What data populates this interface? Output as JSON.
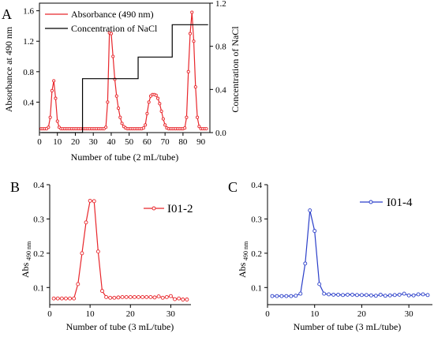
{
  "chart_data": [
    {
      "panel": "A",
      "type": "line",
      "xlabel": "Number of tube (2 mL/tube)",
      "ylabel": "Absorbance at 490 nm",
      "y2label": "Concentration of NaCl",
      "xlim": [
        0,
        95
      ],
      "ylim": [
        0.0,
        1.7
      ],
      "y2lim": [
        0.0,
        1.2
      ],
      "x_ticks": [
        "0",
        "10",
        "20",
        "30",
        "40",
        "50",
        "60",
        "70",
        "80",
        "90"
      ],
      "y_ticks": [
        "0.4",
        "0.8",
        "1.2",
        "1.6"
      ],
      "y2_ticks": [
        "0.0",
        "0.4",
        "0.8",
        "1.2"
      ],
      "legend_position": "top-left",
      "series": [
        {
          "name": "Absorbance (490 nm)",
          "color": "#e8262b",
          "axis": "left",
          "marker": "circle",
          "x": [
            1,
            2,
            3,
            4,
            5,
            6,
            7,
            8,
            9,
            10,
            11,
            12,
            13,
            14,
            15,
            16,
            17,
            18,
            19,
            20,
            21,
            22,
            23,
            24,
            25,
            26,
            27,
            28,
            29,
            30,
            31,
            32,
            33,
            34,
            35,
            36,
            37,
            38,
            39,
            40,
            41,
            42,
            43,
            44,
            45,
            46,
            47,
            48,
            49,
            50,
            51,
            52,
            53,
            54,
            55,
            56,
            57,
            58,
            59,
            60,
            61,
            62,
            63,
            64,
            65,
            66,
            67,
            68,
            69,
            70,
            71,
            72,
            73,
            74,
            75,
            76,
            77,
            78,
            79,
            80,
            81,
            82,
            83,
            84,
            85,
            86,
            87,
            88,
            89,
            90,
            91,
            92,
            93
          ],
          "values": [
            0.05,
            0.05,
            0.05,
            0.05,
            0.07,
            0.2,
            0.55,
            0.68,
            0.45,
            0.15,
            0.07,
            0.05,
            0.05,
            0.05,
            0.05,
            0.05,
            0.05,
            0.05,
            0.05,
            0.05,
            0.05,
            0.05,
            0.05,
            0.05,
            0.05,
            0.05,
            0.05,
            0.05,
            0.05,
            0.05,
            0.05,
            0.05,
            0.05,
            0.05,
            0.05,
            0.05,
            0.07,
            0.4,
            1.31,
            1.3,
            1.0,
            0.7,
            0.48,
            0.32,
            0.2,
            0.12,
            0.08,
            0.06,
            0.05,
            0.05,
            0.05,
            0.05,
            0.05,
            0.05,
            0.05,
            0.05,
            0.05,
            0.06,
            0.1,
            0.25,
            0.4,
            0.48,
            0.5,
            0.5,
            0.49,
            0.45,
            0.38,
            0.28,
            0.18,
            0.1,
            0.06,
            0.05,
            0.05,
            0.05,
            0.05,
            0.05,
            0.05,
            0.05,
            0.05,
            0.05,
            0.06,
            0.2,
            0.8,
            1.3,
            1.58,
            1.2,
            0.6,
            0.2,
            0.08,
            0.05,
            0.05,
            0.05,
            0.05
          ]
        },
        {
          "name": "Concentration of NaCl",
          "color": "#000000",
          "axis": "right",
          "x": [
            1,
            24,
            24,
            55,
            55,
            74,
            74,
            94
          ],
          "values": [
            0.0,
            0.0,
            0.5,
            0.5,
            0.7,
            0.7,
            1.0,
            1.0
          ]
        }
      ]
    },
    {
      "panel": "B",
      "type": "line",
      "xlabel": "Number of tube (3 mL/tube)",
      "ylabel_main": "Abs",
      "ylabel_sub": "490 nm",
      "xlim": [
        0,
        35
      ],
      "ylim": [
        0.05,
        0.4
      ],
      "x_ticks": [
        "0",
        "10",
        "20",
        "30"
      ],
      "y_ticks": [
        "0.1",
        "0.2",
        "0.3",
        "0.4"
      ],
      "legend_position": "top-right",
      "series": [
        {
          "name": "I01-2",
          "color": "#e8262b",
          "marker": "circle",
          "x": [
            1,
            2,
            3,
            4,
            5,
            6,
            7,
            8,
            9,
            10,
            11,
            12,
            13,
            14,
            15,
            16,
            17,
            18,
            19,
            20,
            21,
            22,
            23,
            24,
            25,
            26,
            27,
            28,
            29,
            30,
            31,
            32,
            33,
            34
          ],
          "values": [
            0.068,
            0.068,
            0.068,
            0.068,
            0.068,
            0.068,
            0.11,
            0.2,
            0.29,
            0.353,
            0.352,
            0.205,
            0.09,
            0.072,
            0.07,
            0.07,
            0.071,
            0.072,
            0.072,
            0.072,
            0.072,
            0.072,
            0.072,
            0.072,
            0.072,
            0.071,
            0.074,
            0.07,
            0.072,
            0.075,
            0.066,
            0.068,
            0.065,
            0.065
          ]
        }
      ]
    },
    {
      "panel": "C",
      "type": "line",
      "xlabel": "Number of tube (3 mL/tube)",
      "ylabel_main": "Abs",
      "ylabel_sub": "490 nm",
      "xlim": [
        0,
        35
      ],
      "ylim": [
        0.05,
        0.4
      ],
      "x_ticks": [
        "0",
        "10",
        "20",
        "30"
      ],
      "y_ticks": [
        "0.1",
        "0.2",
        "0.3",
        "0.4"
      ],
      "legend_position": "top-right",
      "series": [
        {
          "name": "I01-4",
          "color": "#2b3fc9",
          "marker": "circle",
          "x": [
            1,
            2,
            3,
            4,
            5,
            6,
            7,
            8,
            9,
            10,
            11,
            12,
            13,
            14,
            15,
            16,
            17,
            18,
            19,
            20,
            21,
            22,
            23,
            24,
            25,
            26,
            27,
            28,
            29,
            30,
            31,
            32,
            33,
            34
          ],
          "values": [
            0.075,
            0.075,
            0.075,
            0.075,
            0.075,
            0.076,
            0.082,
            0.17,
            0.325,
            0.265,
            0.11,
            0.082,
            0.08,
            0.079,
            0.079,
            0.078,
            0.079,
            0.079,
            0.078,
            0.078,
            0.078,
            0.077,
            0.076,
            0.079,
            0.076,
            0.077,
            0.078,
            0.079,
            0.082,
            0.077,
            0.077,
            0.08,
            0.08,
            0.078
          ]
        }
      ]
    }
  ]
}
